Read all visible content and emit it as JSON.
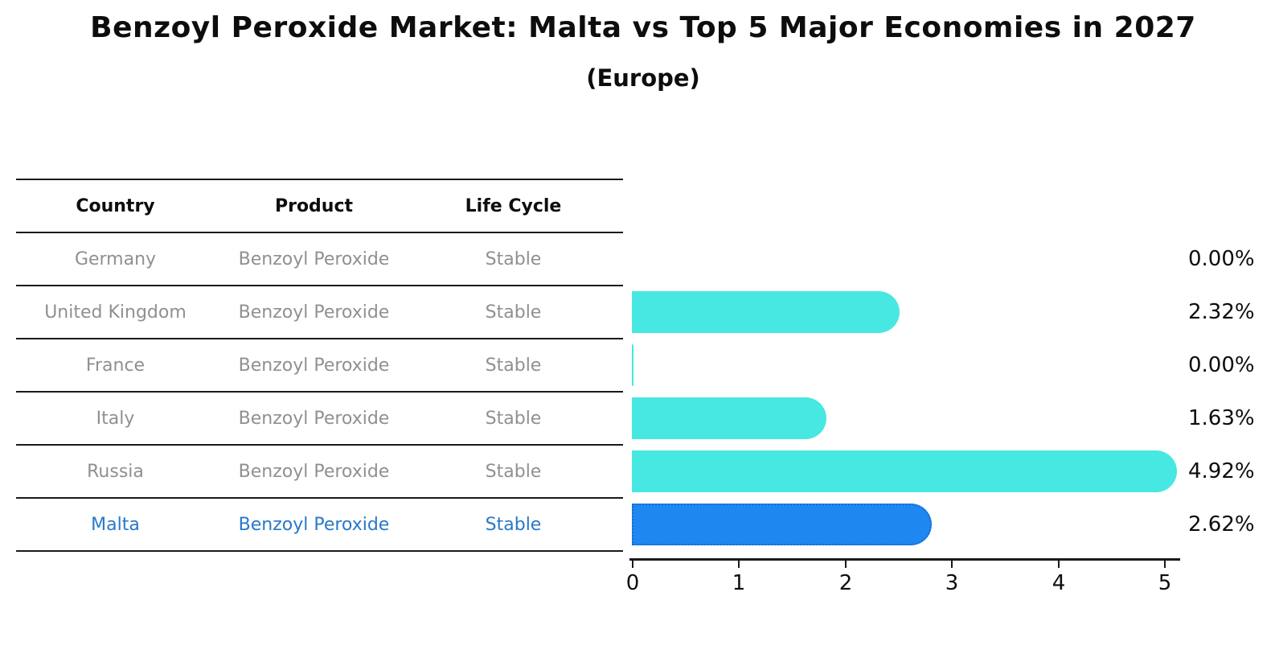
{
  "title": "Benzoyl Peroxide Market: Malta vs Top 5 Major Economies in 2027",
  "subtitle": "(Europe)",
  "table": {
    "headers": {
      "country": "Country",
      "product": "Product",
      "life_cycle": "Life Cycle"
    },
    "rows": [
      {
        "country": "Germany",
        "product": "Benzoyl Peroxide",
        "life_cycle": "Stable",
        "value": 0.0,
        "value_label": "0.00%",
        "highlight": false
      },
      {
        "country": "United Kingdom",
        "product": "Benzoyl Peroxide",
        "life_cycle": "Stable",
        "value": 2.32,
        "value_label": "2.32%",
        "highlight": false
      },
      {
        "country": "France",
        "product": "Benzoyl Peroxide",
        "life_cycle": "Stable",
        "value": 0.0,
        "value_label": "0.00%",
        "highlight": false
      },
      {
        "country": "Italy",
        "product": "Benzoyl Peroxide",
        "life_cycle": "Stable",
        "value": 1.63,
        "value_label": "1.63%",
        "highlight": false
      },
      {
        "country": "Russia",
        "product": "Benzoyl Peroxide",
        "life_cycle": "Stable",
        "value": 4.92,
        "value_label": "4.92%",
        "highlight": false
      },
      {
        "country": "Malta",
        "product": "Benzoyl Peroxide",
        "life_cycle": "Stable",
        "value": 2.62,
        "value_label": "2.62%",
        "highlight": true
      }
    ]
  },
  "chart_data": {
    "type": "bar",
    "orientation": "horizontal",
    "title": "Benzoyl Peroxide Market: Malta vs Top 5 Major Economies in 2027",
    "subtitle": "(Europe)",
    "categories": [
      "Germany",
      "United Kingdom",
      "France",
      "Italy",
      "Russia",
      "Malta"
    ],
    "values": [
      0.0,
      2.32,
      0.0,
      1.63,
      4.92,
      2.62
    ],
    "value_labels": [
      "0.00%",
      "2.32%",
      "0.00%",
      "1.63%",
      "4.92%",
      "2.62%"
    ],
    "xlabel": "",
    "ylabel": "",
    "xlim": [
      0,
      5.15
    ],
    "xticks": [
      "0",
      "1",
      "2",
      "3",
      "4",
      "5"
    ],
    "grid": false,
    "legend": false,
    "highlight_category": "Malta",
    "colors": {
      "bar": "#47e8e1",
      "highlight_bar": "#1e87f0",
      "highlight_border": "#1668d8",
      "table_text": "#909090",
      "highlight_text": "#2878c8",
      "header_text": "#0d0d0d",
      "label_text": "#0d0d0d"
    }
  }
}
